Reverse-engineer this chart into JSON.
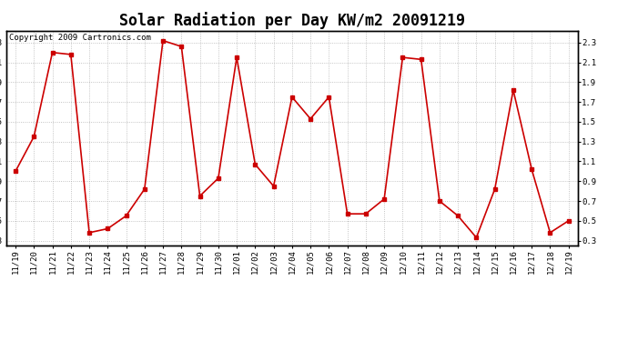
{
  "title": "Solar Radiation per Day KW/m2 20091219",
  "copyright_text": "Copyright 2009 Cartronics.com",
  "x_labels": [
    "11/19",
    "11/20",
    "11/21",
    "11/22",
    "11/23",
    "11/24",
    "11/25",
    "11/26",
    "11/27",
    "11/28",
    "11/29",
    "11/30",
    "12/01",
    "12/02",
    "12/03",
    "12/04",
    "12/05",
    "12/06",
    "12/07",
    "12/08",
    "12/09",
    "12/10",
    "12/11",
    "12/12",
    "12/13",
    "12/14",
    "12/15",
    "12/16",
    "12/17",
    "12/18",
    "12/19"
  ],
  "y_values": [
    1.0,
    1.35,
    2.2,
    2.18,
    0.38,
    0.42,
    0.55,
    0.82,
    2.32,
    2.26,
    0.75,
    0.93,
    2.15,
    1.07,
    0.85,
    1.75,
    1.53,
    1.75,
    0.57,
    0.57,
    0.72,
    2.15,
    2.13,
    0.7,
    0.55,
    0.33,
    0.82,
    1.82,
    1.02,
    0.38,
    0.5
  ],
  "line_color": "#cc0000",
  "marker": "s",
  "marker_size": 2.5,
  "line_width": 1.2,
  "ylim": [
    0.25,
    2.42
  ],
  "yticks": [
    0.3,
    0.5,
    0.7,
    0.9,
    1.1,
    1.3,
    1.5,
    1.7,
    1.9,
    2.1,
    2.3
  ],
  "bg_color": "#ffffff",
  "plot_bg_color": "#ffffff",
  "grid_color": "#aaaaaa",
  "title_fontsize": 12,
  "tick_fontsize": 6.5,
  "copyright_fontsize": 6.5
}
